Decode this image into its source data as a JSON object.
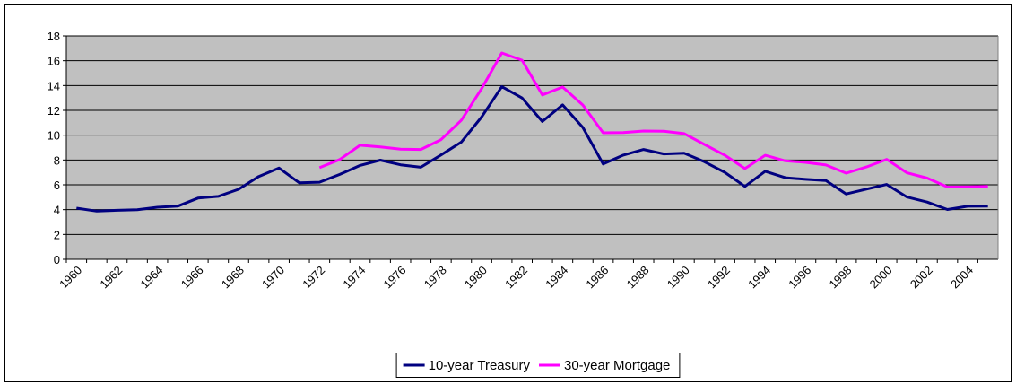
{
  "chart_data": {
    "type": "line",
    "categories": [
      "1960",
      null,
      "1962",
      null,
      "1964",
      null,
      "1966",
      null,
      "1968",
      null,
      "1970",
      null,
      "1972",
      null,
      "1974",
      null,
      "1976",
      null,
      "1978",
      null,
      "1980",
      null,
      "1982",
      null,
      "1984",
      null,
      "1986",
      null,
      "1988",
      null,
      "1990",
      null,
      "1992",
      null,
      "1994",
      null,
      "1996",
      null,
      "1998",
      null,
      "2000",
      null,
      "2002",
      null,
      "2004",
      null
    ],
    "series": [
      {
        "name": "10-year Treasury",
        "color": "#000080",
        "values": [
          4.12,
          3.88,
          3.95,
          4.0,
          4.19,
          4.28,
          4.93,
          5.07,
          5.64,
          6.67,
          7.35,
          6.16,
          6.21,
          6.84,
          7.56,
          7.99,
          7.61,
          7.42,
          8.41,
          9.44,
          11.46,
          13.91,
          13.0,
          11.1,
          12.44,
          10.62,
          7.68,
          8.39,
          8.85,
          8.49,
          8.55,
          7.86,
          7.01,
          5.87,
          7.09,
          6.57,
          6.44,
          6.35,
          5.26,
          5.65,
          6.03,
          5.02,
          4.61,
          4.01,
          4.27,
          4.29
        ]
      },
      {
        "name": "30-year Mortgage",
        "color": "#ff00ff",
        "values": [
          null,
          null,
          null,
          null,
          null,
          null,
          null,
          null,
          null,
          null,
          null,
          null,
          7.38,
          8.04,
          9.19,
          9.05,
          8.87,
          8.85,
          9.64,
          11.2,
          13.74,
          16.63,
          16.04,
          13.24,
          13.88,
          12.43,
          10.19,
          10.21,
          10.34,
          10.32,
          10.13,
          9.25,
          8.39,
          7.31,
          8.38,
          7.93,
          7.81,
          7.6,
          6.94,
          7.44,
          8.05,
          6.97,
          6.54,
          5.83,
          5.84,
          5.87
        ]
      }
    ],
    "ylim": [
      0,
      18
    ],
    "yticks": [
      0,
      2,
      4,
      6,
      8,
      10,
      12,
      14,
      16,
      18
    ],
    "grid": true,
    "legend": "bottom"
  }
}
